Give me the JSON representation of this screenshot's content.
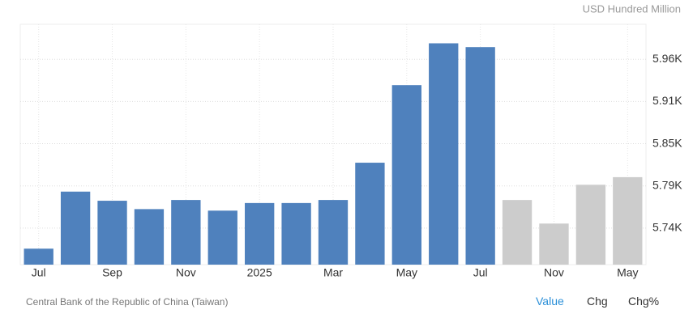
{
  "chart_data": {
    "type": "bar",
    "unit_label": "USD Hundred Million",
    "source": "Central Bank of the Republic of China (Taiwan)",
    "categories": [
      "Jul",
      null,
      "Sep",
      null,
      "Nov",
      null,
      "2025",
      null,
      "Mar",
      null,
      "May",
      null,
      "Jul",
      null,
      "Nov",
      null,
      "May"
    ],
    "values": [
      5712,
      5787,
      5775,
      5764,
      5776,
      5762,
      5772,
      5772,
      5776,
      5825,
      5927,
      5982,
      5977,
      5776,
      5745,
      5796,
      5806
    ],
    "colors": [
      "#4f81bd",
      "#4f81bd",
      "#4f81bd",
      "#4f81bd",
      "#4f81bd",
      "#4f81bd",
      "#4f81bd",
      "#4f81bd",
      "#4f81bd",
      "#4f81bd",
      "#4f81bd",
      "#4f81bd",
      "#4f81bd",
      "#cccccc",
      "#cccccc",
      "#cccccc",
      "#cccccc"
    ],
    "ylim": [
      5691,
      6007
    ],
    "yticks": [
      {
        "value": 5739,
        "label": "5.74K"
      },
      {
        "value": 5794.5,
        "label": "5.79K"
      },
      {
        "value": 5850,
        "label": "5.85K"
      },
      {
        "value": 5905.5,
        "label": "5.91K"
      },
      {
        "value": 5961,
        "label": "5.96K"
      }
    ],
    "grid": true,
    "tabs": [
      "Value",
      "Chg",
      "Chg%"
    ]
  }
}
